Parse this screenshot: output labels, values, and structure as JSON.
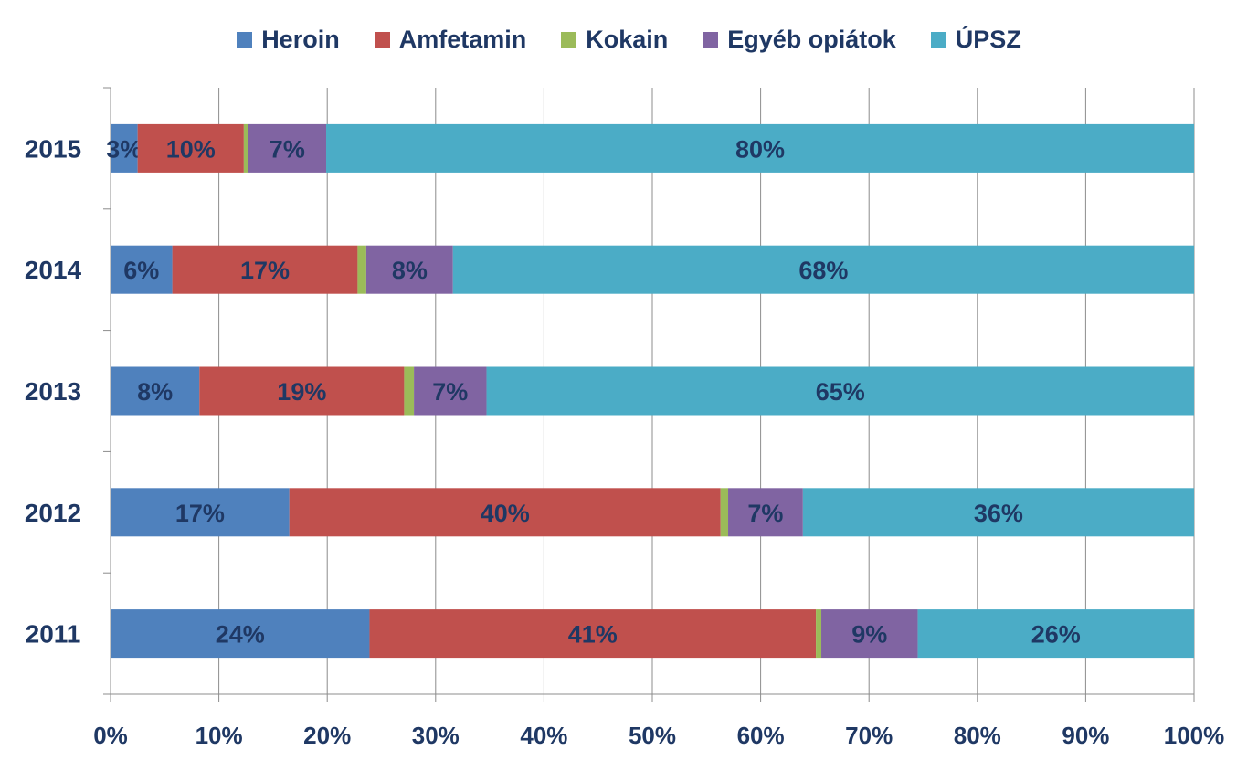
{
  "chart_data": {
    "type": "bar",
    "orientation": "horizontal",
    "stacked": "percent",
    "categories": [
      "2015",
      "2014",
      "2013",
      "2012",
      "2011"
    ],
    "series": [
      {
        "name": "Heroin",
        "color": "#4f81bd",
        "values": [
          2.5,
          5.7,
          8.2,
          16.5,
          23.9
        ],
        "labels": [
          "3%",
          "6%",
          "8%",
          "17%",
          "24%"
        ]
      },
      {
        "name": "Amfetamin",
        "color": "#c0504d",
        "values": [
          9.8,
          17.1,
          18.9,
          39.8,
          41.2
        ],
        "labels": [
          "10%",
          "17%",
          "19%",
          "40%",
          "41%"
        ]
      },
      {
        "name": "Kokain",
        "color": "#9bbb59",
        "values": [
          0.4,
          0.8,
          0.9,
          0.7,
          0.5
        ],
        "labels": [
          "",
          "",
          "",
          "",
          ""
        ]
      },
      {
        "name": "Egyéb opiátok",
        "color": "#8064a2",
        "values": [
          7.2,
          8.0,
          6.7,
          6.9,
          8.9
        ],
        "labels": [
          "7%",
          "8%",
          "7%",
          "7%",
          "9%"
        ]
      },
      {
        "name": "ÚPSZ",
        "color": "#4bacc6",
        "values": [
          80.1,
          68.4,
          65.3,
          36.1,
          25.5
        ],
        "labels": [
          "80%",
          "68%",
          "65%",
          "36%",
          "26%"
        ]
      }
    ],
    "xlim": [
      0,
      100
    ],
    "xticks": [
      "0%",
      "10%",
      "20%",
      "30%",
      "40%",
      "50%",
      "60%",
      "70%",
      "80%",
      "90%",
      "100%"
    ],
    "grid": "vertical",
    "legend": "top-center",
    "title": "",
    "xlabel": "",
    "ylabel": ""
  }
}
